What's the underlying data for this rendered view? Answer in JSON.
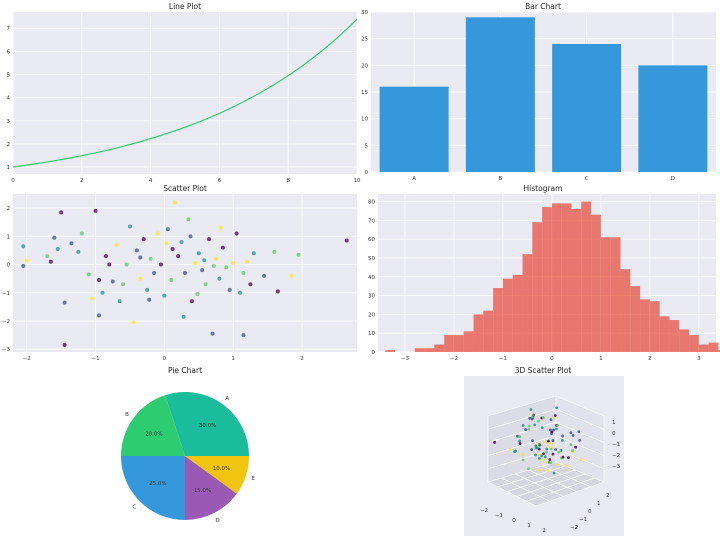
{
  "colors": {
    "panel_bg": "#eaeaf2",
    "line": "#2ecc71",
    "bar": "#3498db",
    "hist": "#e74c3c",
    "pie": [
      "#1abc9c",
      "#2ecc71",
      "#3498db",
      "#9b59b6",
      "#f1c40f"
    ],
    "viridis": [
      "#440154",
      "#3b528b",
      "#21918c",
      "#5ec962",
      "#fde725"
    ]
  },
  "chart_data": [
    {
      "type": "line",
      "title": "Line Plot",
      "xlim": [
        0,
        10
      ],
      "ylim": [
        0.7,
        7.7
      ],
      "xticks": [
        "0",
        "2",
        "4",
        "6",
        "8",
        "10"
      ],
      "yticks": [
        "1",
        "2",
        "3",
        "4",
        "5",
        "6",
        "7"
      ],
      "series": [
        {
          "x": [
            0,
            1,
            2,
            3,
            4,
            5,
            6,
            7,
            8,
            9,
            10
          ],
          "values": [
            1.0,
            1.22,
            1.49,
            1.82,
            2.23,
            2.72,
            3.32,
            4.06,
            4.95,
            6.05,
            7.39
          ]
        }
      ]
    },
    {
      "type": "bar",
      "title": "Bar Chart",
      "categories": [
        "A",
        "B",
        "C",
        "D"
      ],
      "values": [
        16,
        29,
        24,
        20
      ],
      "ylim": [
        0,
        30
      ],
      "yticks": [
        "0",
        "5",
        "10",
        "15",
        "20",
        "25",
        "30"
      ]
    },
    {
      "type": "scatter",
      "title": "Scatter Plot",
      "xlim": [
        -2.2,
        2.8
      ],
      "ylim": [
        -3.1,
        2.5
      ],
      "xticks": [
        "−2",
        "−1",
        "0",
        "1",
        "2"
      ],
      "yticks": [
        "−3",
        "−2",
        "−1",
        "0",
        "1",
        "2"
      ],
      "points": [
        [
          -1.45,
          -2.85
        ],
        [
          -1.45,
          -1.35
        ],
        [
          -1.5,
          1.85
        ],
        [
          -1.6,
          0.95
        ],
        [
          -1.55,
          0.55
        ],
        [
          -1.7,
          0.3
        ],
        [
          -1.65,
          0.1
        ],
        [
          -2.05,
          0.65
        ],
        [
          -2.05,
          -0.05
        ],
        [
          -2.0,
          0.15
        ],
        [
          -1.0,
          1.9
        ],
        [
          -1.2,
          1.1
        ],
        [
          -0.95,
          -1.8
        ],
        [
          -0.9,
          -1.0
        ],
        [
          -0.8,
          0.0
        ],
        [
          -0.7,
          0.7
        ],
        [
          -0.6,
          -0.7
        ],
        [
          -0.5,
          1.35
        ],
        [
          -0.45,
          -2.05
        ],
        [
          -0.4,
          0.5
        ],
        [
          -0.3,
          0.9
        ],
        [
          -0.25,
          -0.9
        ],
        [
          -0.2,
          0.2
        ],
        [
          -0.15,
          -0.3
        ],
        [
          -0.1,
          1.1
        ],
        [
          -0.05,
          0.0
        ],
        [
          0.0,
          -1.1
        ],
        [
          0.05,
          1.25
        ],
        [
          0.1,
          -0.55
        ],
        [
          0.15,
          2.2
        ],
        [
          0.2,
          0.3
        ],
        [
          0.25,
          0.8
        ],
        [
          0.3,
          -0.3
        ],
        [
          0.35,
          1.6
        ],
        [
          0.4,
          -1.3
        ],
        [
          0.45,
          0.05
        ],
        [
          0.5,
          0.4
        ],
        [
          0.55,
          -0.2
        ],
        [
          0.6,
          -0.7
        ],
        [
          0.65,
          0.9
        ],
        [
          0.7,
          -2.45
        ],
        [
          0.75,
          0.2
        ],
        [
          0.8,
          -0.5
        ],
        [
          0.85,
          0.6
        ],
        [
          0.9,
          -0.1
        ],
        [
          0.95,
          -0.9
        ],
        [
          1.0,
          0.05
        ],
        [
          1.05,
          1.1
        ],
        [
          1.1,
          -1.0
        ],
        [
          1.15,
          -0.3
        ],
        [
          1.15,
          -2.5
        ],
        [
          1.2,
          0.1
        ],
        [
          1.25,
          -0.7
        ],
        [
          1.3,
          0.4
        ],
        [
          1.45,
          -0.4
        ],
        [
          1.6,
          0.45
        ],
        [
          1.65,
          -0.95
        ],
        [
          1.85,
          -0.4
        ],
        [
          1.95,
          0.35
        ],
        [
          2.65,
          0.85
        ],
        [
          -1.35,
          0.75
        ],
        [
          -1.25,
          0.45
        ],
        [
          -1.1,
          -0.35
        ],
        [
          -1.05,
          -1.2
        ],
        [
          -0.85,
          0.3
        ],
        [
          -0.75,
          -0.6
        ],
        [
          -0.65,
          -1.3
        ],
        [
          -0.55,
          0.0
        ],
        [
          -0.35,
          -0.5
        ],
        [
          0.12,
          0.55
        ],
        [
          0.38,
          1.0
        ],
        [
          0.58,
          0.15
        ],
        [
          0.72,
          -0.05
        ],
        [
          0.82,
          1.3
        ],
        [
          -0.95,
          -0.55
        ],
        [
          -0.35,
          0.25
        ],
        [
          0.28,
          -1.85
        ],
        [
          0.48,
          -1.05
        ],
        [
          0.03,
          0.75
        ],
        [
          -0.22,
          -1.25
        ]
      ],
      "point_color_index": [
        0,
        1,
        0,
        1,
        2,
        3,
        0,
        2,
        1,
        4,
        0,
        3,
        1,
        2,
        0,
        4,
        3,
        2,
        4,
        1,
        0,
        2,
        3,
        1,
        4,
        0,
        2,
        1,
        3,
        4,
        0,
        2,
        1,
        3,
        0,
        4,
        2,
        1,
        3,
        0,
        1,
        4,
        2,
        0,
        3,
        1,
        4,
        0,
        2,
        3,
        1,
        4,
        0,
        2,
        1,
        3,
        0,
        4,
        3,
        0,
        1,
        2,
        3,
        4,
        0,
        1,
        2,
        3,
        4,
        0,
        1,
        2,
        3,
        4,
        0,
        1,
        2,
        3,
        4,
        1
      ]
    },
    {
      "type": "bar",
      "subtype": "histogram",
      "title": "Histogram",
      "xlim": [
        -3.55,
        3.35
      ],
      "ylim": [
        0,
        84
      ],
      "xticks": [
        "−3",
        "−2",
        "−1",
        "0",
        "1",
        "2",
        "3"
      ],
      "yticks": [
        "0",
        "10",
        "20",
        "30",
        "40",
        "50",
        "60",
        "70",
        "80"
      ],
      "bin_start": -3.4,
      "bin_width": 0.2,
      "values": [
        1,
        0,
        0,
        2,
        2,
        4,
        9,
        9,
        11,
        20,
        22,
        34,
        39,
        41,
        52,
        69,
        77,
        79,
        79,
        76,
        80,
        73,
        61,
        61,
        44,
        35,
        28,
        27,
        19,
        17,
        12,
        9,
        4,
        5,
        1
      ]
    },
    {
      "type": "pie",
      "title": "Pie Chart",
      "categories": [
        "A",
        "B",
        "C",
        "D",
        "E"
      ],
      "values": [
        30,
        20,
        25,
        15,
        10
      ],
      "labels_pct": [
        "30.0%",
        "20.0%",
        "25.0%",
        "15.0%",
        "10.0%"
      ]
    },
    {
      "type": "scatter",
      "subtype": "3d",
      "title": "3D Scatter Plot",
      "x_ticks": [
        "−2",
        "−1",
        "0",
        "1",
        "2"
      ],
      "y_ticks": [
        "2",
        "1",
        "0",
        "−1",
        "−2"
      ],
      "z_ticks": [
        "1",
        "0",
        "−1",
        "−2",
        "−3"
      ]
    }
  ]
}
